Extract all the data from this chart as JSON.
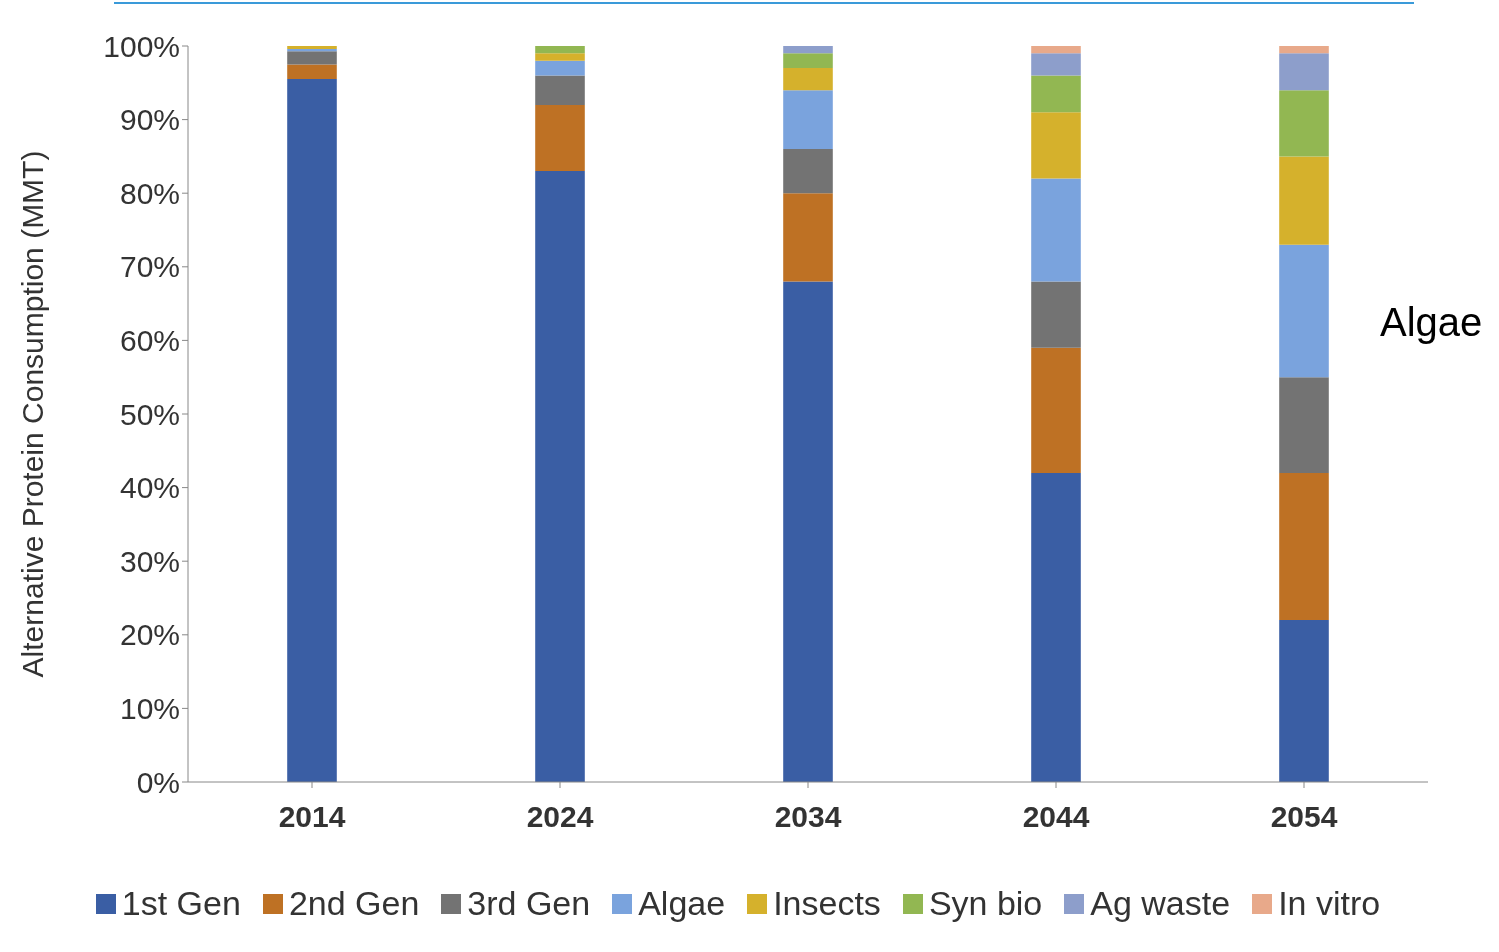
{
  "chart_data": {
    "type": "bar",
    "stacked": true,
    "ylabel": "Alternative Protein Consumption (MMT)",
    "categories": [
      "2014",
      "2024",
      "2034",
      "2044",
      "2054"
    ],
    "series": [
      {
        "name": "1st Gen",
        "color": "#3a5ea4",
        "values": [
          95.5,
          83,
          68,
          42,
          22
        ]
      },
      {
        "name": "2nd Gen",
        "color": "#be7124",
        "values": [
          2,
          9,
          12,
          17,
          20
        ]
      },
      {
        "name": "3rd Gen",
        "color": "#737373",
        "values": [
          1.8,
          4,
          6,
          9,
          13
        ]
      },
      {
        "name": "Algae",
        "color": "#7aa3dd",
        "values": [
          0.3,
          2,
          8,
          14,
          18
        ]
      },
      {
        "name": "Insects",
        "color": "#d5b12c",
        "values": [
          0.4,
          1,
          3,
          9,
          12
        ]
      },
      {
        "name": "Syn bio",
        "color": "#92b752",
        "values": [
          0,
          1,
          2,
          5,
          9
        ]
      },
      {
        "name": "Ag waste",
        "color": "#8d9ecb",
        "values": [
          0,
          0,
          1,
          3,
          5
        ]
      },
      {
        "name": "In vitro",
        "color": "#e8a98a",
        "values": [
          0,
          0,
          0,
          1,
          1
        ]
      }
    ],
    "ylim": [
      0,
      100
    ],
    "yticks": [
      {
        "value": 0,
        "label": "0%"
      },
      {
        "value": 10,
        "label": "10%"
      },
      {
        "value": 20,
        "label": "20%"
      },
      {
        "value": 30,
        "label": "30%"
      },
      {
        "value": 40,
        "label": "40%"
      },
      {
        "value": 50,
        "label": "50%"
      },
      {
        "value": 60,
        "label": "60%"
      },
      {
        "value": 70,
        "label": "70%"
      },
      {
        "value": 80,
        "label": "80%"
      },
      {
        "value": 90,
        "label": "90%"
      },
      {
        "value": 100,
        "label": "100%"
      }
    ],
    "grid": false,
    "legend": "bottom",
    "annotations": [
      "Algae"
    ]
  }
}
